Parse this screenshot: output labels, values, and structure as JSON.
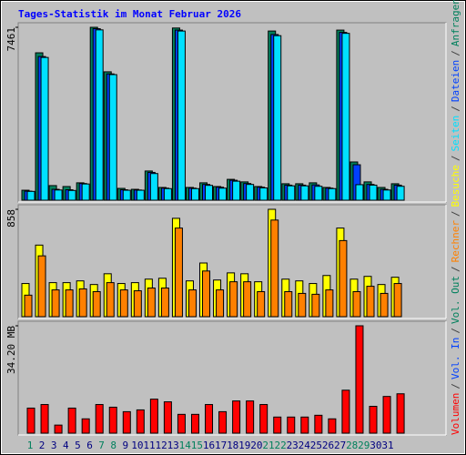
{
  "chart_data": [
    {
      "type": "bar",
      "title": "Tages-Statistik im Monat Februar 2026",
      "ylim": [
        0,
        7461
      ],
      "yticks": [
        7461
      ],
      "series": [
        {
          "name": "Seiten",
          "color": "#00e0ff",
          "values": [
            380,
            6160,
            440,
            420,
            700,
            7350,
            5420,
            430,
            430,
            1150,
            500,
            7300,
            500,
            640,
            520,
            820,
            680,
            530,
            7100,
            620,
            620,
            600,
            500,
            7200,
            670,
            650,
            440,
            600,
            null,
            null,
            null
          ]
        },
        {
          "name": "Dateien",
          "color": "#0040ff",
          "values": [
            390,
            6200,
            470,
            450,
            720,
            7400,
            5450,
            450,
            440,
            1200,
            520,
            7340,
            520,
            680,
            560,
            860,
            720,
            560,
            7150,
            650,
            650,
            660,
            520,
            7240,
            1530,
            680,
            470,
            650,
            null,
            null,
            null
          ]
        },
        {
          "name": "Anfragen",
          "color": "#00805c",
          "values": [
            430,
            6360,
            630,
            590,
            750,
            7461,
            5540,
            510,
            470,
            1260,
            550,
            7430,
            550,
            750,
            590,
            900,
            790,
            590,
            7300,
            710,
            710,
            750,
            550,
            7340,
            1650,
            790,
            550,
            710,
            null,
            null,
            null
          ]
        }
      ]
    },
    {
      "type": "bar",
      "ylim": [
        0,
        858
      ],
      "yticks": [
        858
      ],
      "series": [
        {
          "name": "Rechner",
          "color": "#ff8000",
          "values": [
            172,
            486,
            214,
            214,
            222,
            200,
            272,
            214,
            207,
            229,
            229,
            708,
            214,
            365,
            214,
            279,
            279,
            200,
            772,
            200,
            186,
            179,
            214,
            608,
            200,
            243,
            186,
            265,
            null,
            null,
            null
          ]
        },
        {
          "name": "Besuche",
          "color": "#ffff00",
          "values": [
            265,
            572,
            272,
            272,
            286,
            257,
            343,
            265,
            272,
            300,
            307,
            786,
            286,
            429,
            293,
            350,
            343,
            279,
            858,
            300,
            286,
            265,
            329,
            708,
            300,
            322,
            257,
            315,
            null,
            null,
            null
          ]
        }
      ]
    },
    {
      "type": "bar",
      "ylim": [
        0,
        34.2
      ],
      "yticks": [
        {
          "value": 34.2,
          "label": "34.20 MB"
        }
      ],
      "separator": "/",
      "categories": [
        "1",
        "2",
        "3",
        "4",
        "5",
        "6",
        "7",
        "8",
        "9",
        "10",
        "11",
        "12",
        "13",
        "14",
        "15",
        "16",
        "17",
        "18",
        "19",
        "20",
        "21",
        "22",
        "23",
        "24",
        "25",
        "26",
        "27",
        "28",
        "29",
        "30",
        "31"
      ],
      "category_colors": [
        "#00805c",
        "#000080",
        "#000080",
        "#000080",
        "#000080",
        "#000080",
        "#00805c",
        "#00805c",
        "#000080",
        "#000080",
        "#000080",
        "#000080",
        "#000080",
        "#00805c",
        "#00805c",
        "#000080",
        "#000080",
        "#000080",
        "#000080",
        "#000080",
        "#00805c",
        "#00805c",
        "#000080",
        "#000080",
        "#000080",
        "#000080",
        "#000080",
        "#00805c",
        "#00805c",
        "#000080",
        "#000080"
      ],
      "series": [
        {
          "name": "Volumen",
          "color": "#ff0000",
          "values": [
            7.98,
            9.12,
            2.57,
            7.98,
            4.56,
            9.12,
            8.27,
            6.84,
            7.41,
            10.83,
            9.98,
            5.99,
            5.99,
            9.12,
            6.84,
            10.26,
            10.26,
            9.12,
            5.13,
            5.13,
            5.13,
            5.7,
            4.56,
            13.68,
            34.2,
            8.55,
            11.69,
            12.54,
            null,
            null,
            null
          ]
        },
        {
          "name": "Vol. In",
          "color": "#0040ff",
          "values": [
            null,
            null,
            null,
            null,
            null,
            null,
            null,
            null,
            null,
            null,
            null,
            null,
            null,
            null,
            null,
            null,
            null,
            null,
            null,
            null,
            null,
            null,
            null,
            null,
            null,
            null,
            null,
            null,
            null,
            null,
            null
          ]
        },
        {
          "name": "Vol. Out",
          "color": "#00805c",
          "values": [
            null,
            null,
            null,
            null,
            null,
            null,
            null,
            null,
            null,
            null,
            null,
            null,
            null,
            null,
            null,
            null,
            null,
            null,
            null,
            null,
            null,
            null,
            null,
            null,
            null,
            null,
            null,
            null,
            null,
            null,
            null
          ]
        }
      ]
    }
  ]
}
